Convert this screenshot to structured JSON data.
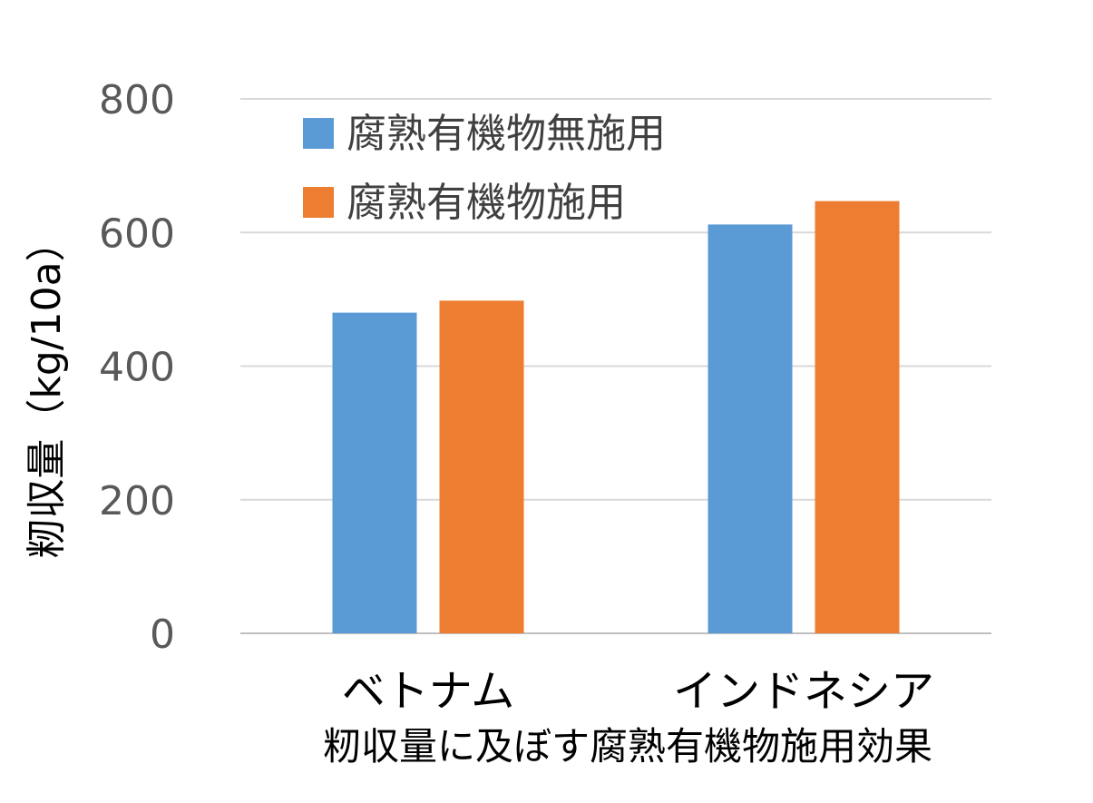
{
  "chart_data": {
    "type": "bar",
    "title": "籾収量に及ぼす腐熟有機物施用効果",
    "xlabel": "",
    "ylabel": "籾収量（kg/10a）",
    "categories": [
      "ベトナム",
      "インドネシア"
    ],
    "series": [
      {
        "name": "腐熟有機物無施用",
        "color": "#5B9BD5",
        "values": [
          480,
          612
        ]
      },
      {
        "name": "腐熟有機物施用",
        "color": "#ED7D31",
        "values": [
          498,
          647
        ]
      }
    ],
    "ylim": [
      0,
      800
    ],
    "yticks": [
      "0",
      "200",
      "400",
      "600",
      "800"
    ],
    "grid": true,
    "gridColor": "#D9D9D9",
    "legend": "top-left"
  }
}
